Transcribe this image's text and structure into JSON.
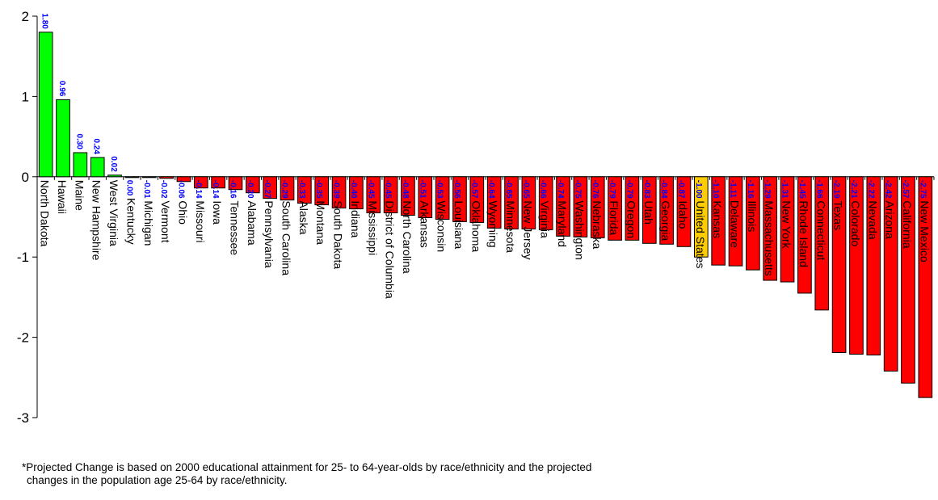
{
  "chart_data": {
    "type": "bar",
    "title": "",
    "xlabel": "",
    "ylabel": "",
    "ylim": [
      -3,
      2
    ],
    "yticks": [
      2,
      1,
      0,
      -1,
      -2,
      -3
    ],
    "grid": false,
    "legend": "none",
    "colors": {
      "positive": "#00ff00",
      "negative": "#ff0000",
      "highlight": "#ffcc00",
      "value_label": "#0000ff"
    },
    "highlight_category": "United States",
    "categories": [
      "North Dakota",
      "Hawaii",
      "Maine",
      "New Hampshire",
      "West Virginia",
      "Kentucky",
      "Michigan",
      "Vermont",
      "Ohio",
      "Missouri",
      "Iowa",
      "Tennessee",
      "Alabama",
      "Pennsylvania",
      "South Carolina",
      "Alaska",
      "Montana",
      "South Dakota",
      "Indiana",
      "Mississippi",
      "District of Columbia",
      "North Carolina",
      "Arkansas",
      "Wisconsin",
      "Louisiana",
      "Oklahoma",
      "Wyoming",
      "Minnesota",
      "New Jersey",
      "Virginia",
      "Maryland",
      "Washington",
      "Nebraska",
      "Florida",
      "Oregon",
      "Utah",
      "Georgia",
      "Idaho",
      "United States",
      "Kansas",
      "Delaware",
      "Illinois",
      "Massachusetts",
      "New York",
      "Rhode Island",
      "Connecticut",
      "Texas",
      "Colorado",
      "Nevada",
      "Arizona",
      "California",
      "New Mexico"
    ],
    "values": [
      1.8,
      0.96,
      0.3,
      0.24,
      0.02,
      0.0,
      -0.01,
      -0.02,
      -0.06,
      -0.14,
      -0.14,
      -0.16,
      -0.2,
      -0.27,
      -0.29,
      -0.33,
      -0.35,
      -0.39,
      -0.4,
      -0.45,
      -0.45,
      -0.48,
      -0.51,
      -0.53,
      -0.56,
      -0.57,
      -0.64,
      -0.65,
      -0.65,
      -0.66,
      -0.74,
      -0.75,
      -0.76,
      -0.79,
      -0.79,
      -0.83,
      -0.84,
      -0.87,
      -1.0,
      -1.1,
      -1.11,
      -1.16,
      -1.29,
      -1.31,
      -1.45,
      -1.66,
      -2.19,
      -2.21,
      -2.22,
      -2.42,
      -2.57,
      -2.75
    ],
    "value_labels": [
      "1.80",
      "0.96",
      "0.30",
      "0.24",
      "0.02",
      "0.00",
      "-0.01",
      "-0.02",
      "-0.06",
      "-0.14",
      "-0.14",
      "-0.16",
      "-0.20",
      "-0.27",
      "-0.29",
      "-0.33",
      "-0.35",
      "-0.39",
      "-0.40",
      "-0.45",
      "-0.45",
      "-0.48",
      "-0.51",
      "-0.53",
      "-0.56",
      "-0.57",
      "-0.64",
      "-0.65",
      "-0.65",
      "-0.66",
      "-0.74",
      "-0.75",
      "-0.76",
      "-0.79",
      "-0.79",
      "-0.83",
      "-0.84",
      "-0.87",
      "-1.00",
      "-1.10",
      "-1.11",
      "-1.16",
      "-1.29",
      "-1.31",
      "-1.45",
      "-1.66",
      "-2.19",
      "-2.21",
      "-2.22",
      "-2.42",
      "-2.57",
      "-2.75"
    ]
  },
  "footnote": {
    "line1": "*Projected Change is based on 2000 educational attainment for 25- to 64-year-olds by race/ethnicity and the projected",
    "line2": "changes in the population age 25-64 by race/ethnicity."
  }
}
